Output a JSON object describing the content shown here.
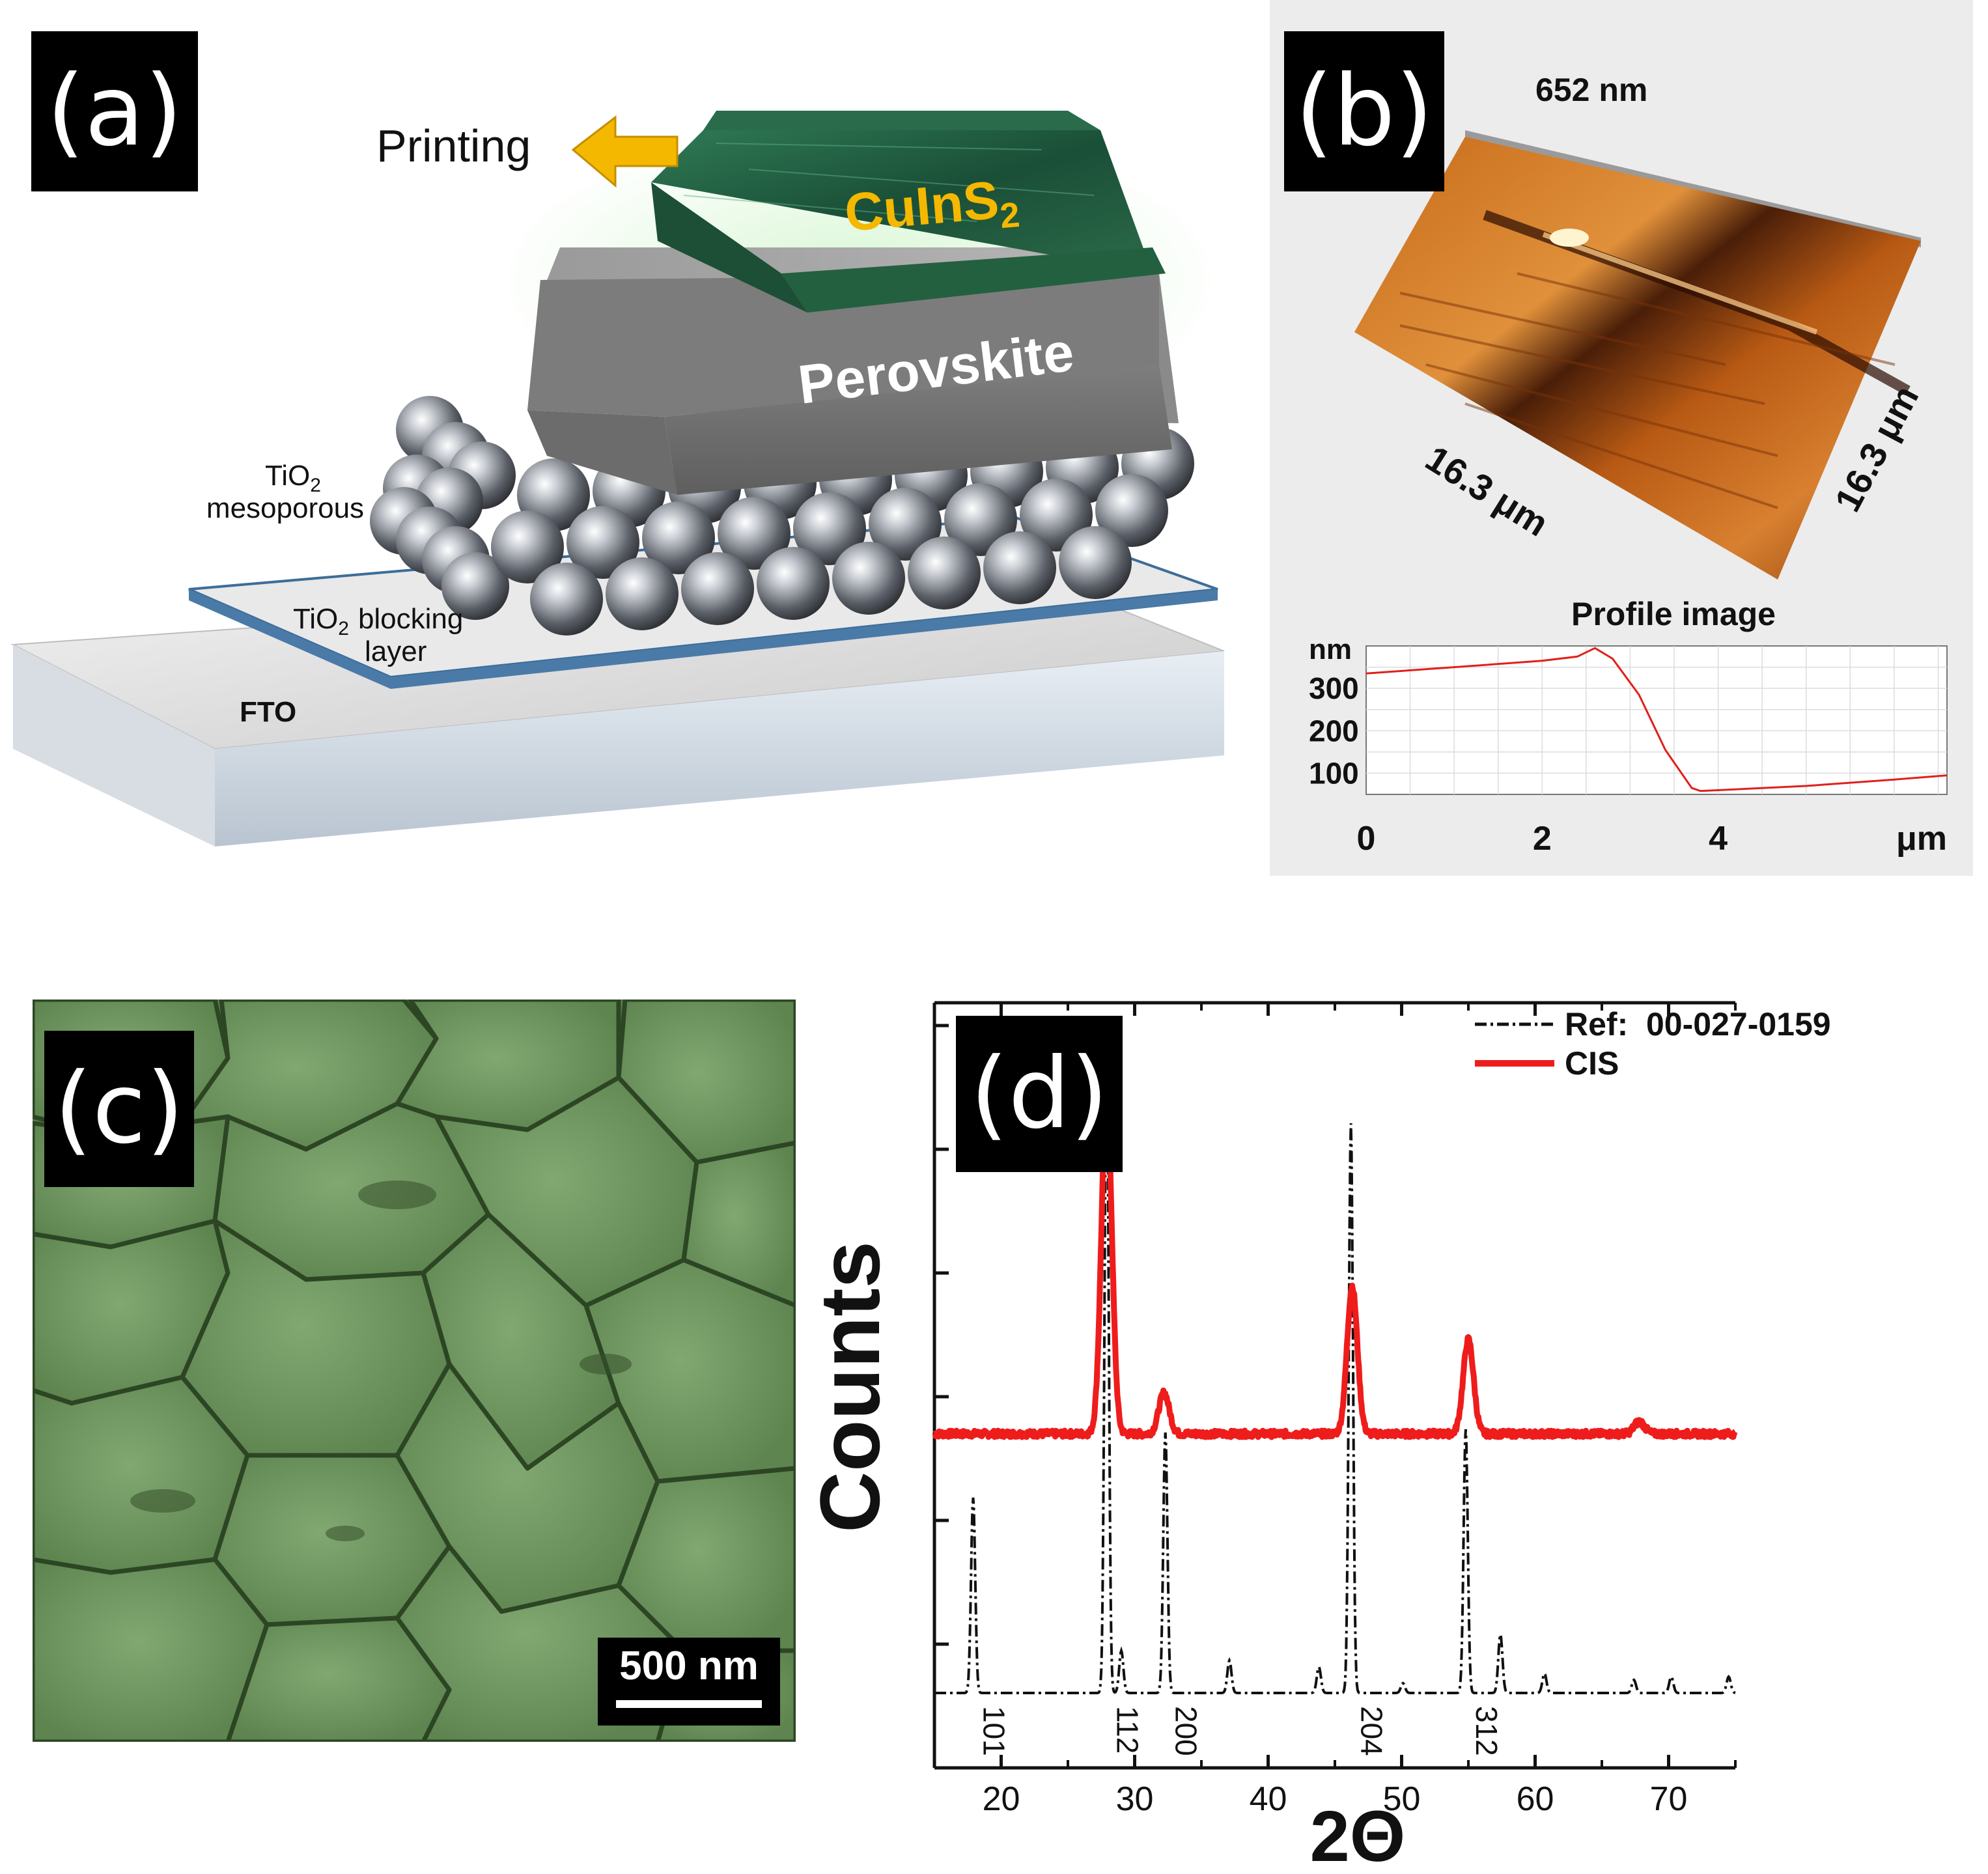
{
  "panel_a": {
    "label": "(a)",
    "arrow_text": "Printing",
    "top_layer_base": "CuInS",
    "top_layer_sub": "2",
    "mid_layer": "Perovskite",
    "meso_base": "TiO",
    "meso_sub": "2",
    "meso_word": "mesoporous",
    "block_base": "TiO",
    "block_sub": "2",
    "block_word1": "blocking",
    "block_word2": "layer",
    "substrate": "FTO",
    "colors": {
      "cuins2_text": "#f5b800",
      "arrow": "#f5b800",
      "cuins2_block": "#1f5c40"
    }
  },
  "panel_b": {
    "label": "(b)",
    "height_label": "652 nm",
    "side_left": "16.3 μm",
    "side_right": "16.3 μm",
    "profile_title": "Profile image",
    "y_unit": "nm",
    "x_unit": "μm",
    "y_ticks": [
      "300",
      "200",
      "100"
    ],
    "x_ticks": [
      "0",
      "2",
      "4"
    ]
  },
  "panel_c": {
    "label": "(c)",
    "scale_text": "500 nm"
  },
  "panel_d": {
    "label": "(d)",
    "legend_ref": "Ref:  00-027-0159",
    "legend_cis": "CIS",
    "xlabel": "2Θ",
    "ylabel": "Counts",
    "x_ticks": [
      "20",
      "30",
      "40",
      "50",
      "60",
      "70"
    ],
    "hkl": [
      "101",
      "112",
      "200",
      "204",
      "312"
    ]
  },
  "chart_data": [
    {
      "type": "line",
      "panel": "b",
      "title": "Profile image",
      "xlabel": "μm",
      "ylabel": "nm",
      "xlim": [
        0,
        6.6
      ],
      "ylim": [
        50,
        400
      ],
      "series": [
        {
          "x": [
            0,
            1,
            2,
            2.4,
            2.6,
            2.8,
            3.1,
            3.4,
            3.7,
            3.8,
            4,
            5,
            6,
            6.6
          ],
          "y": [
            335,
            350,
            365,
            375,
            395,
            370,
            285,
            155,
            65,
            58,
            60,
            70,
            85,
            95
          ]
        }
      ]
    },
    {
      "type": "line",
      "panel": "d",
      "xlabel": "2Θ",
      "ylabel": "Counts",
      "xlim": [
        15,
        75
      ],
      "series": [
        {
          "name": "CIS",
          "peaks": [
            {
              "x": 27.9,
              "y": 0.83
            },
            {
              "x": 32.2,
              "y": 0.1
            },
            {
              "x": 46.3,
              "y": 0.36
            },
            {
              "x": 55.0,
              "y": 0.23
            },
            {
              "x": 67.8,
              "y": 0.03
            }
          ],
          "baseline": 0.0
        },
        {
          "name": "Ref:  00-027-0159",
          "peaks": [
            {
              "x": 17.9,
              "y": 0.6
            },
            {
              "x": 27.9,
              "y": 2.0
            },
            {
              "x": 29.0,
              "y": 0.13
            },
            {
              "x": 32.3,
              "y": 0.8
            },
            {
              "x": 37.1,
              "y": 0.1
            },
            {
              "x": 43.8,
              "y": 0.08
            },
            {
              "x": 46.2,
              "y": 1.75
            },
            {
              "x": 50.1,
              "y": 0.03
            },
            {
              "x": 54.8,
              "y": 0.81
            },
            {
              "x": 57.4,
              "y": 0.18
            },
            {
              "x": 60.7,
              "y": 0.06
            },
            {
              "x": 67.4,
              "y": 0.04
            },
            {
              "x": 70.2,
              "y": 0.05
            },
            {
              "x": 74.5,
              "y": 0.05
            }
          ],
          "baseline": 0.0
        }
      ]
    }
  ]
}
